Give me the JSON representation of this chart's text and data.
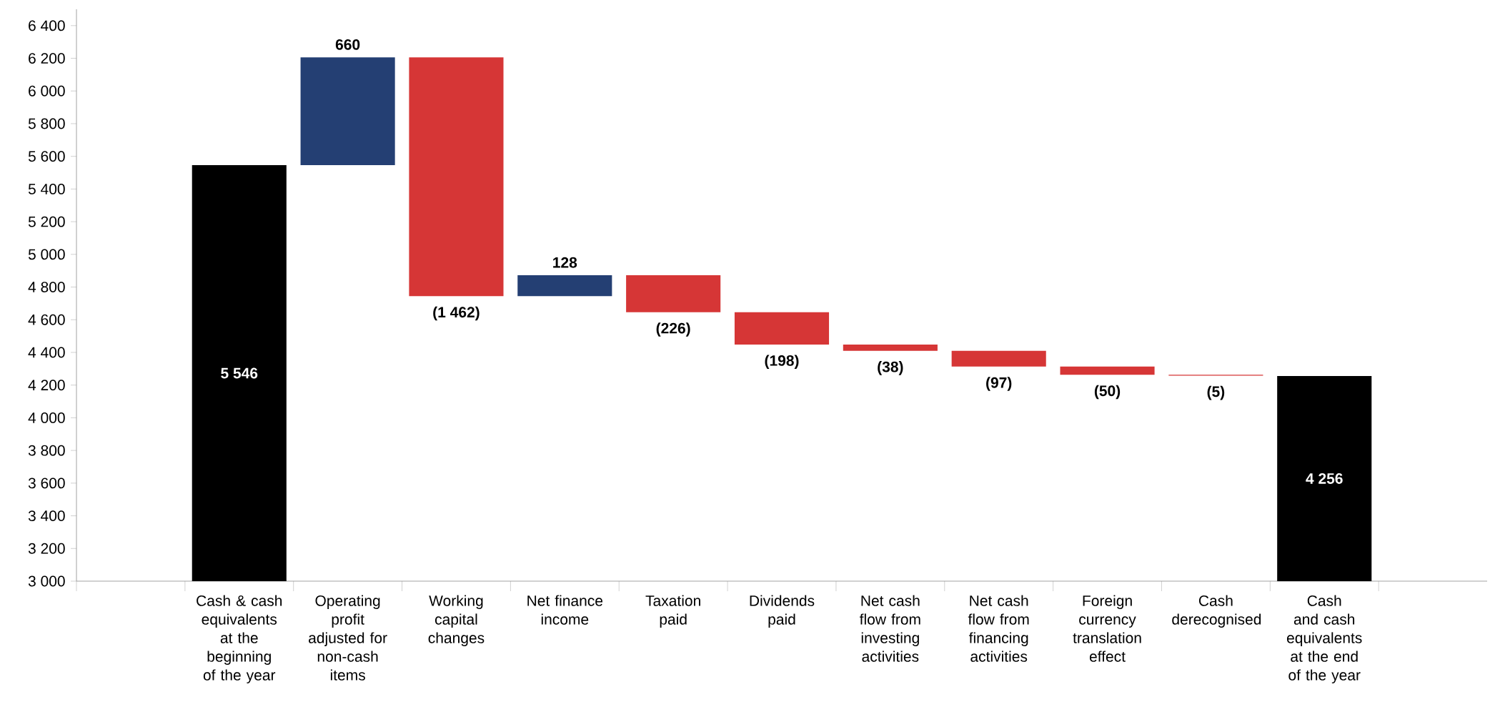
{
  "chart_data": {
    "type": "bar",
    "categories": [
      null,
      "Cash & cash equivalents at the beginning of the year",
      "Operating profit adjusted for non-cash items",
      "Working capital changes",
      "Net finance income",
      "Taxation paid",
      "Dividends paid",
      "Net cash flow from investing activities",
      "Net cash flow from financing activities",
      "Foreign currency translation effect",
      "Cash derecognised",
      "Cash and cash equivalents at the end of the year",
      null
    ],
    "values": [
      null,
      5546,
      660,
      -1462,
      128,
      -226,
      -198,
      -38,
      -97,
      -50,
      -5,
      4256,
      null
    ],
    "base": [
      null,
      null,
      5546,
      6206,
      4744,
      4872,
      4646,
      4448,
      4410,
      4313,
      4263,
      null,
      null
    ],
    "colors": [
      null,
      "#000000",
      "#243f73",
      "#d63636",
      "#243f73",
      "#d63636",
      "#d63636",
      "#d63636",
      "#d63636",
      "#d63636",
      "#d63636",
      "#000000",
      null
    ],
    "value_labels": [
      null,
      "5 546",
      "660",
      "(1 462)",
      "128",
      "(226)",
      "(198)",
      "(38)",
      "(97)",
      "(50)",
      "(5)",
      "4 256",
      null
    ],
    "ylim": [
      3000,
      6500
    ],
    "yticks": [
      {
        "value": 3000,
        "label": "3 000"
      },
      {
        "value": 3200,
        "label": "3 200"
      },
      {
        "value": 3400,
        "label": "3 400"
      },
      {
        "value": 3600,
        "label": "3 600"
      },
      {
        "value": 3800,
        "label": "3 800"
      },
      {
        "value": 4000,
        "label": "4 000"
      },
      {
        "value": 4200,
        "label": "4 200"
      },
      {
        "value": 4400,
        "label": "4 400"
      },
      {
        "value": 4600,
        "label": "4 600"
      },
      {
        "value": 4800,
        "label": "4 800"
      },
      {
        "value": 5000,
        "label": "5 000"
      },
      {
        "value": 5200,
        "label": "5 200"
      },
      {
        "value": 5400,
        "label": "5 400"
      },
      {
        "value": 5600,
        "label": "5 600"
      },
      {
        "value": 5800,
        "label": "5 800"
      },
      {
        "value": 6000,
        "label": "6 000"
      },
      {
        "value": 6200,
        "label": "6 200"
      },
      {
        "value": 6400,
        "label": "6 400"
      }
    ]
  }
}
